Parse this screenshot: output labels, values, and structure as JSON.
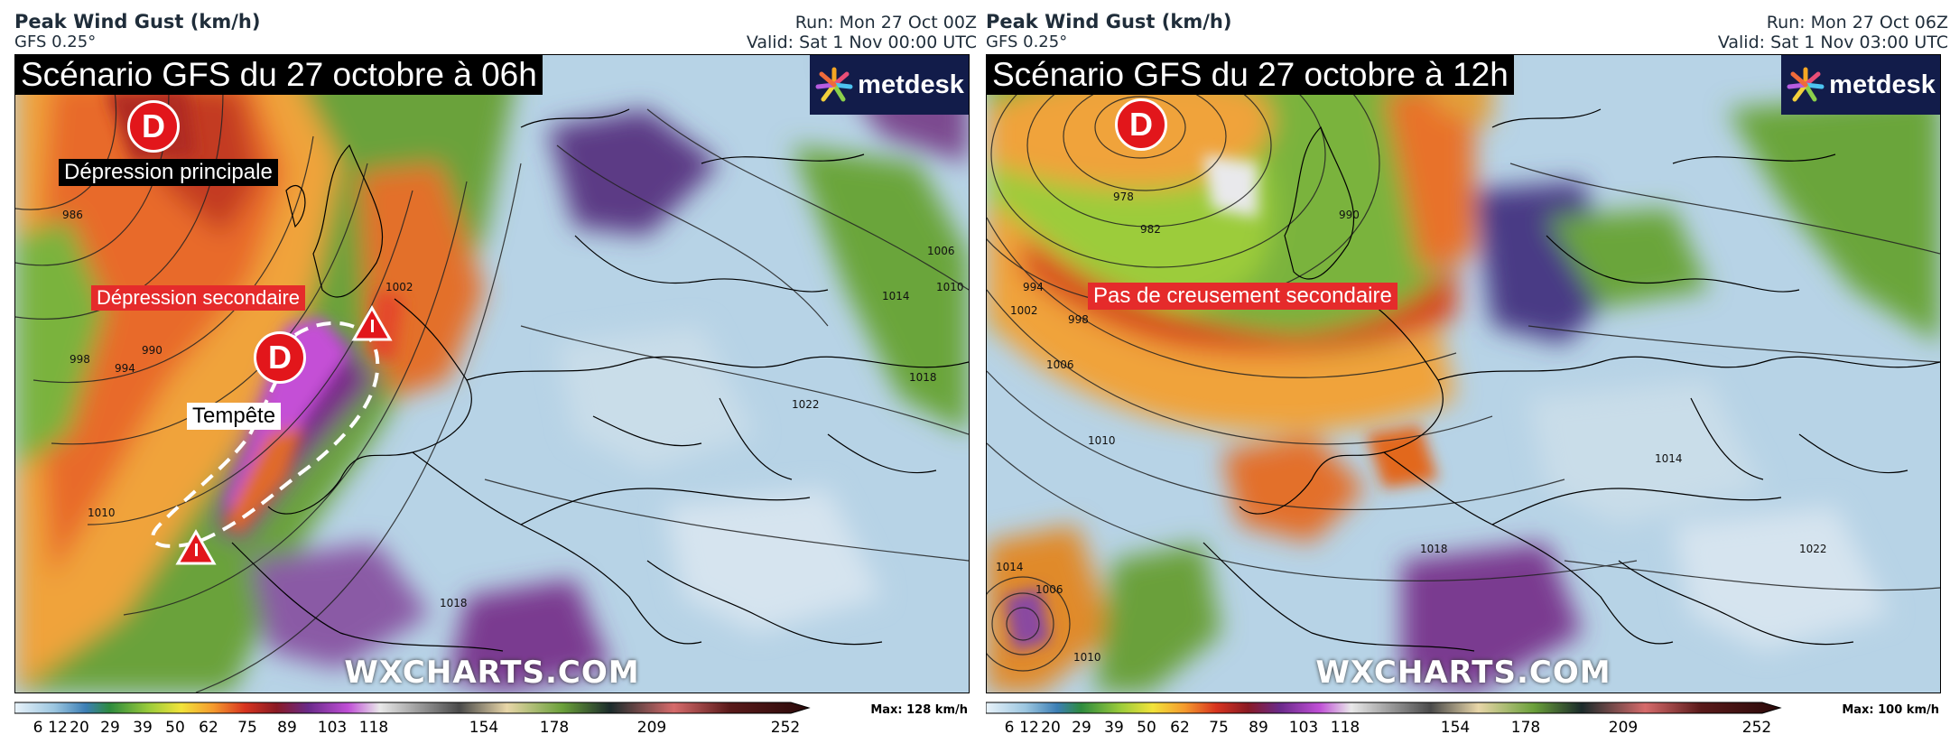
{
  "panels": [
    {
      "title": "Peak Wind Gust (km/h)",
      "model": "GFS 0.25°",
      "run": "Run: Mon 27 Oct 00Z",
      "valid": "Valid: Sat 1 Nov 00:00 UTC",
      "scenario": "Scénario GFS du 27 octobre à 06h",
      "logo": "metdesk",
      "watermark": "WXCHARTS.COM",
      "max": "Max: 128 km/h",
      "lows": [
        "D",
        "D"
      ],
      "annotations": {
        "main_low": "Dépression principale",
        "secondary_low": "Dépression secondaire",
        "storm": "Tempête"
      },
      "isobars": [
        "986",
        "990",
        "994",
        "998",
        "1002",
        "1006",
        "1010",
        "1014",
        "1018",
        "1022",
        "1010",
        "1018"
      ]
    },
    {
      "title": "Peak Wind Gust (km/h)",
      "model": "GFS 0.25°",
      "run": "Run: Mon 27 Oct 06Z",
      "valid": "Valid: Sat 1 Nov 03:00 UTC",
      "scenario": "Scénario GFS du 27 octobre à 12h",
      "logo": "metdesk",
      "watermark": "WXCHARTS.COM",
      "max": "Max: 100 km/h",
      "lows": [
        "D"
      ],
      "annotations": {
        "no_deepening": "Pas de creusement secondaire"
      },
      "isobars": [
        "978",
        "982",
        "990",
        "994",
        "998",
        "1002",
        "1006",
        "1010",
        "1014",
        "1018",
        "1022",
        "1006",
        "1010",
        "1014"
      ]
    }
  ],
  "colorbar": {
    "ticks": [
      "6",
      "12",
      "20",
      "29",
      "39",
      "50",
      "62",
      "75",
      "89",
      "103",
      "118",
      "154",
      "178",
      "209",
      "252"
    ]
  },
  "colors": {
    "low_badge": "#e2161b",
    "label_red": "#e52b2b",
    "logo_bg": "#121c4a"
  }
}
